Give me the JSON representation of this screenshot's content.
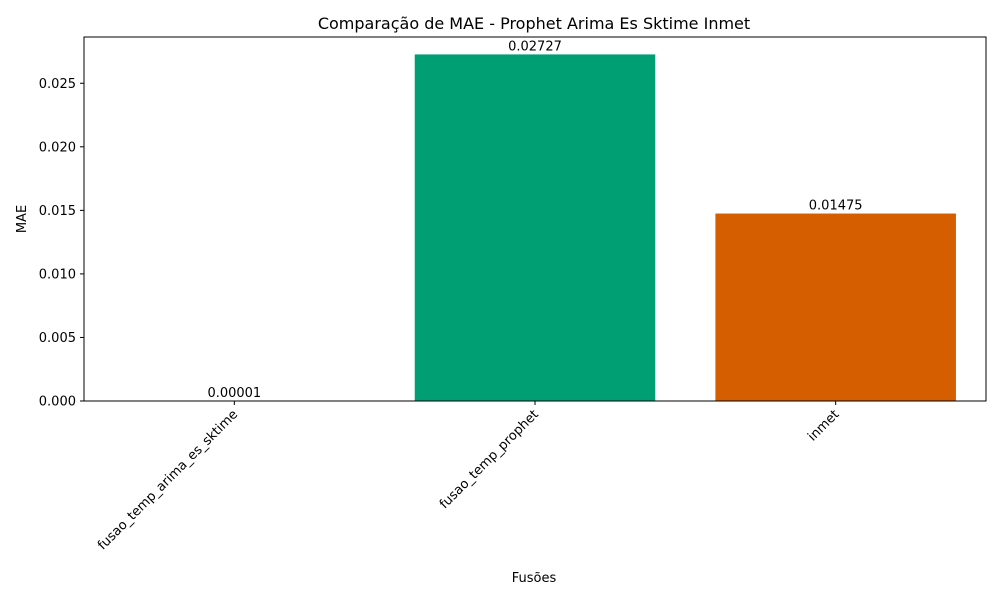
{
  "chart_data": {
    "type": "bar",
    "title": "Comparação de MAE - Prophet Arima Es Sktime Inmet",
    "xlabel": "Fusões",
    "ylabel": "MAE",
    "categories": [
      "fusao_temp_arima_es_sktime",
      "fusao_temp_prophet",
      "inmet"
    ],
    "values": [
      1e-05,
      0.02727,
      0.01475
    ],
    "value_labels": [
      "0.00001",
      "0.02727",
      "0.01475"
    ],
    "colors": [
      "#1b9e77",
      "#009e73",
      "#d55e00"
    ],
    "ylim": [
      0,
      0.02864
    ],
    "yticks": [
      0.0,
      0.005,
      0.01,
      0.015,
      0.02,
      0.025
    ],
    "ytick_labels": [
      "0.000",
      "0.005",
      "0.010",
      "0.015",
      "0.020",
      "0.025"
    ],
    "grid": false,
    "legend": "none"
  }
}
